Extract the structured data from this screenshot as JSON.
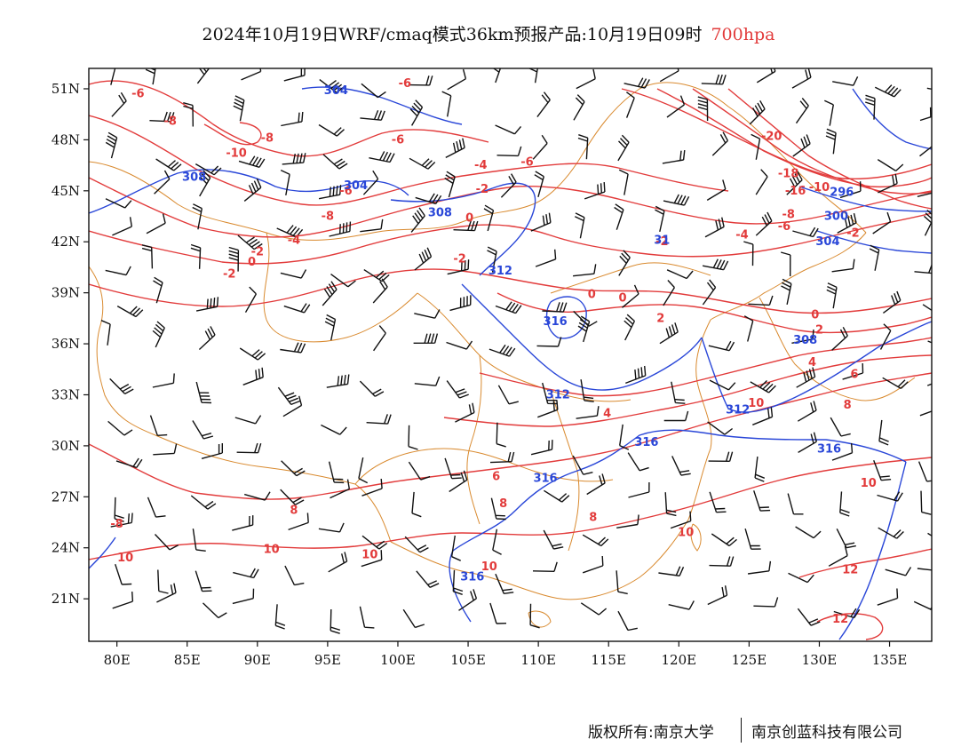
{
  "title": {
    "main": "2024年10月19日WRF/cmaq模式36km预报产品:10月19日09时",
    "level": "700hpa"
  },
  "map": {
    "lon_ticks": [
      80,
      85,
      90,
      95,
      100,
      105,
      110,
      115,
      120,
      125,
      130,
      135
    ],
    "lat_ticks": [
      21,
      24,
      27,
      30,
      33,
      36,
      39,
      42,
      45,
      48,
      51
    ],
    "lon_labels": [
      "80E",
      "85E",
      "90E",
      "95E",
      "100E",
      "105E",
      "110E",
      "115E",
      "120E",
      "125E",
      "130E",
      "135E"
    ],
    "lat_labels": [
      "21N",
      "24N",
      "27N",
      "30N",
      "33N",
      "36N",
      "39N",
      "42N",
      "45N",
      "48N",
      "51N"
    ],
    "lon_range": [
      78,
      138
    ],
    "lat_range": [
      18.5,
      52.2
    ]
  },
  "temperature_labels": [
    {
      "text": "-6",
      "lon": 81.5,
      "lat": 50.7
    },
    {
      "text": "-8",
      "lon": 83.8,
      "lat": 49.1
    },
    {
      "text": "-8",
      "lon": 90.7,
      "lat": 48.1
    },
    {
      "text": "-10",
      "lon": 88.5,
      "lat": 47.2
    },
    {
      "text": "-6",
      "lon": 100.5,
      "lat": 51.3
    },
    {
      "text": "-6",
      "lon": 100.0,
      "lat": 48.0
    },
    {
      "text": "-8",
      "lon": 95.0,
      "lat": 43.5
    },
    {
      "text": "-6",
      "lon": 96.3,
      "lat": 45.0
    },
    {
      "text": "-4",
      "lon": 92.6,
      "lat": 42.1
    },
    {
      "text": "-2",
      "lon": 90.0,
      "lat": 41.4
    },
    {
      "text": "0",
      "lon": 89.6,
      "lat": 40.8
    },
    {
      "text": "-2",
      "lon": 88.0,
      "lat": 40.1
    },
    {
      "text": "-4",
      "lon": 105.9,
      "lat": 46.5
    },
    {
      "text": "-6",
      "lon": 109.2,
      "lat": 46.7
    },
    {
      "text": "-2",
      "lon": 106.0,
      "lat": 45.1
    },
    {
      "text": "0",
      "lon": 105.1,
      "lat": 43.4
    },
    {
      "text": "-2",
      "lon": 104.4,
      "lat": 41.0
    },
    {
      "text": "-20",
      "lon": 126.6,
      "lat": 48.2
    },
    {
      "text": "-18",
      "lon": 127.8,
      "lat": 46.0
    },
    {
      "text": "-16",
      "lon": 128.3,
      "lat": 45.0
    },
    {
      "text": "-10",
      "lon": 130.0,
      "lat": 45.2
    },
    {
      "text": "-8",
      "lon": 127.8,
      "lat": 43.6
    },
    {
      "text": "-6",
      "lon": 127.5,
      "lat": 42.9
    },
    {
      "text": "-4",
      "lon": 124.5,
      "lat": 42.4
    },
    {
      "text": "-2",
      "lon": 118.8,
      "lat": 42.0
    },
    {
      "text": "-2",
      "lon": 132.4,
      "lat": 42.5
    },
    {
      "text": "0",
      "lon": 113.8,
      "lat": 38.9
    },
    {
      "text": "0",
      "lon": 116.0,
      "lat": 38.7
    },
    {
      "text": "2",
      "lon": 118.7,
      "lat": 37.5
    },
    {
      "text": "0",
      "lon": 129.7,
      "lat": 37.7
    },
    {
      "text": "2",
      "lon": 130.0,
      "lat": 36.8
    },
    {
      "text": "4",
      "lon": 129.5,
      "lat": 34.9
    },
    {
      "text": "6",
      "lon": 132.5,
      "lat": 34.2
    },
    {
      "text": "8",
      "lon": 132.0,
      "lat": 32.4
    },
    {
      "text": "10",
      "lon": 125.5,
      "lat": 32.5
    },
    {
      "text": "4",
      "lon": 114.9,
      "lat": 31.9
    },
    {
      "text": "6",
      "lon": 107.0,
      "lat": 28.2
    },
    {
      "text": "8",
      "lon": 107.5,
      "lat": 26.6
    },
    {
      "text": "8",
      "lon": 113.9,
      "lat": 25.8
    },
    {
      "text": "10",
      "lon": 120.5,
      "lat": 24.9
    },
    {
      "text": "10",
      "lon": 133.5,
      "lat": 27.8
    },
    {
      "text": "-8",
      "lon": 80.0,
      "lat": 25.4
    },
    {
      "text": "10",
      "lon": 80.6,
      "lat": 23.4
    },
    {
      "text": "8",
      "lon": 92.6,
      "lat": 26.2
    },
    {
      "text": "10",
      "lon": 91.0,
      "lat": 23.9
    },
    {
      "text": "10",
      "lon": 98.0,
      "lat": 23.6
    },
    {
      "text": "10",
      "lon": 106.5,
      "lat": 22.9
    },
    {
      "text": "12",
      "lon": 132.2,
      "lat": 22.7
    },
    {
      "text": "12",
      "lon": 131.5,
      "lat": 19.8
    }
  ],
  "height_labels": [
    {
      "text": "304",
      "lon": 95.6,
      "lat": 50.9
    },
    {
      "text": "308",
      "lon": 85.5,
      "lat": 45.8
    },
    {
      "text": "304",
      "lon": 97.0,
      "lat": 45.3
    },
    {
      "text": "308",
      "lon": 103.0,
      "lat": 43.7
    },
    {
      "text": "312",
      "lon": 107.3,
      "lat": 40.3
    },
    {
      "text": "316",
      "lon": 111.2,
      "lat": 37.3
    },
    {
      "text": "312",
      "lon": 111.4,
      "lat": 33.0
    },
    {
      "text": "31",
      "lon": 118.8,
      "lat": 42.1
    },
    {
      "text": "296",
      "lon": 131.6,
      "lat": 44.9
    },
    {
      "text": "300",
      "lon": 131.2,
      "lat": 43.5
    },
    {
      "text": "304",
      "lon": 130.6,
      "lat": 42.0
    },
    {
      "text": "308",
      "lon": 129.0,
      "lat": 36.2
    },
    {
      "text": "312",
      "lon": 124.2,
      "lat": 32.1
    },
    {
      "text": "316",
      "lon": 117.7,
      "lat": 30.2
    },
    {
      "text": "316",
      "lon": 130.7,
      "lat": 29.8
    },
    {
      "text": "316",
      "lon": 110.5,
      "lat": 28.1
    },
    {
      "text": "316",
      "lon": 105.3,
      "lat": 22.3
    }
  ],
  "footer": {
    "left": "版权所有:南京大学",
    "right": "南京创蓝科技有限公司"
  }
}
